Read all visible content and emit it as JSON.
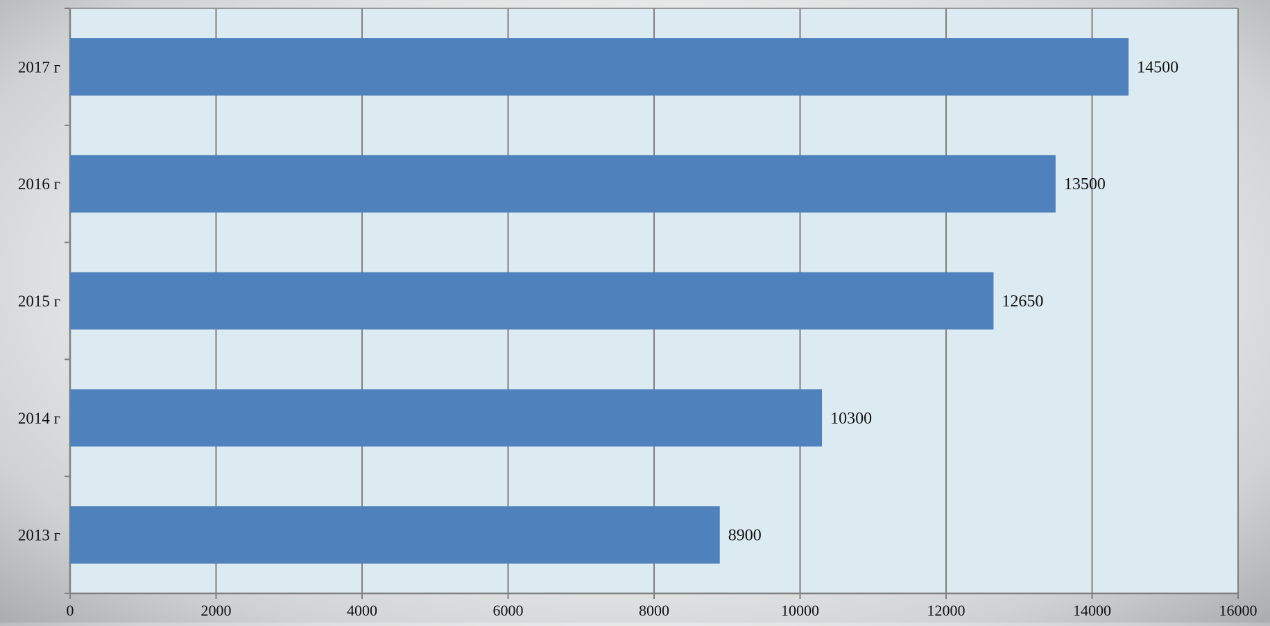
{
  "chart_data": {
    "type": "bar",
    "orientation": "horizontal",
    "categories": [
      "2013 г",
      "2014 г",
      "2015 г",
      "2016 г",
      "2017 г"
    ],
    "values": [
      8900,
      10300,
      12650,
      13500,
      14500
    ],
    "data_labels": [
      "8900",
      "10300",
      "12650",
      "13500",
      "14500"
    ],
    "x_ticks": [
      "0",
      "2000",
      "4000",
      "6000",
      "8000",
      "10000",
      "12000",
      "14000",
      "16000"
    ],
    "xlim": [
      0,
      16000
    ],
    "title": "",
    "xlabel": "",
    "ylabel": "",
    "grid": "vertical",
    "legend": "none",
    "colors": {
      "bar": "#4f81bd",
      "plot_background": "#dcebf2",
      "grid": "#7f7f7f",
      "axis": "#7f7f7f"
    }
  }
}
